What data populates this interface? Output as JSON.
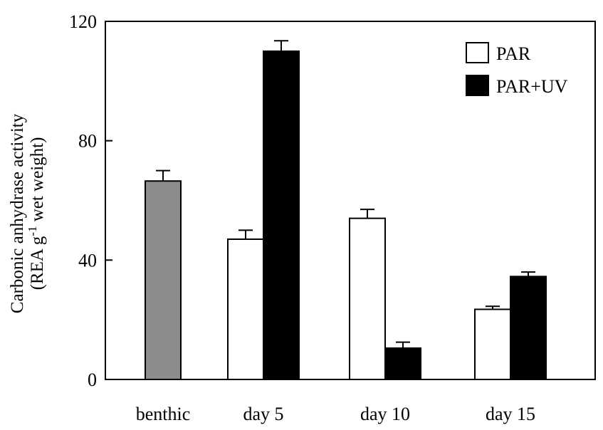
{
  "chart_data": {
    "type": "bar",
    "title": "",
    "xlabel": "",
    "ylabel_line1": "Carbonic anhydrase activity",
    "ylabel_line2_prefix": "(REA g",
    "ylabel_line2_sup": "-1",
    "ylabel_line2_suffix": " wet weight)",
    "ylim": [
      0,
      120
    ],
    "yticks": [
      "0",
      "40",
      "80",
      "120"
    ],
    "ytick_values": [
      0,
      40,
      80,
      120
    ],
    "grid": false,
    "legend_position": "top-right",
    "categories": [
      "benthic",
      "day 5",
      "day 10",
      "day 15"
    ],
    "series": [
      {
        "name": "",
        "color": "#8c8c8c",
        "values": [
          66.5,
          null,
          null,
          null
        ],
        "errors": [
          3.5,
          null,
          null,
          null
        ]
      },
      {
        "name": "PAR",
        "color": "#ffffff",
        "values": [
          null,
          47,
          54,
          23.5
        ],
        "errors": [
          null,
          3,
          3,
          1
        ]
      },
      {
        "name": "PAR+UV",
        "color": "#000000",
        "values": [
          null,
          110,
          10.5,
          34.5
        ],
        "errors": [
          null,
          3.5,
          2,
          1.5
        ]
      }
    ]
  },
  "legend": {
    "par_label": "PAR",
    "paruv_label": "PAR+UV"
  },
  "colors": {
    "axis": "#000000",
    "benthic": "#8c8c8c",
    "par": "#ffffff",
    "paruv": "#000000"
  }
}
